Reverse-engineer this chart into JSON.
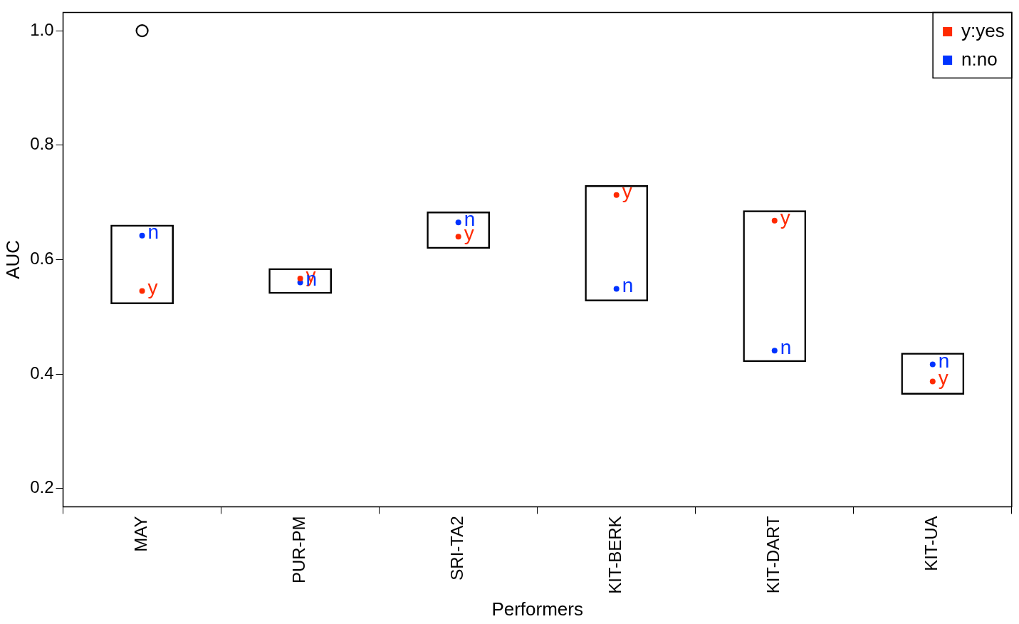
{
  "chart_data": {
    "type": "scatter",
    "xlabel": "Performers",
    "ylabel": "AUC",
    "categories": [
      "MAY",
      "PUR-PM",
      "SRI-TA2",
      "KIT-BERK",
      "KIT-DART",
      "KIT-UA"
    ],
    "series": [
      {
        "type": "bar",
        "color": "#000000",
        "base": [
          0.522,
          0.54,
          0.619,
          0.527,
          0.421,
          0.364
        ],
        "values": [
          0.139,
          0.045,
          0.065,
          0.203,
          0.265,
          0.073
        ]
      },
      {
        "name": "y:yes",
        "color": "#ff2a00",
        "values": [
          0.545,
          0.567,
          0.64,
          0.713,
          0.668,
          0.387
        ],
        "value_labels": [
          "y",
          "y",
          "y",
          "y",
          "y",
          "y"
        ]
      },
      {
        "name": "n:no",
        "color": "#0033ff",
        "values": [
          0.642,
          0.56,
          0.665,
          0.549,
          0.441,
          0.417
        ],
        "value_labels": [
          "n",
          "n",
          "n",
          "n",
          "n",
          "n"
        ]
      },
      {
        "marker": "circle",
        "color": "#000000",
        "values": [
          1.0,
          null,
          null,
          null,
          null,
          null
        ]
      }
    ],
    "ylim": [
      0.168,
      1.032
    ],
    "yticks": [
      0.2,
      0.4,
      0.6,
      0.8,
      {
        "value": 1,
        "label": "1.0"
      }
    ],
    "grid": false,
    "legend": "top right"
  }
}
